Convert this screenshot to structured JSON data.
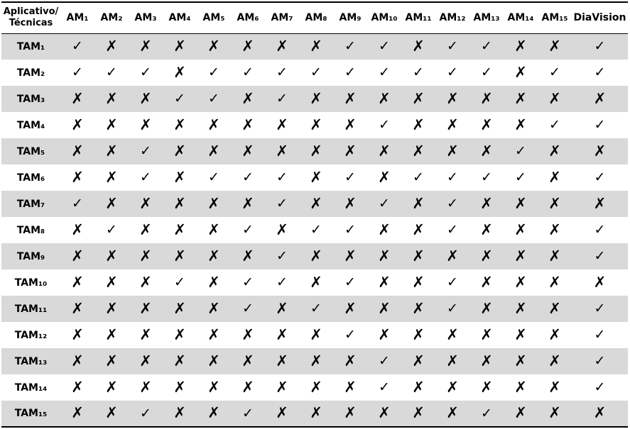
{
  "table": {
    "corner_header": [
      "Aplicativo/",
      "Técnicas"
    ],
    "columns": [
      "AM₁",
      "AM₂",
      "AM₃",
      "AM₄",
      "AM₅",
      "AM₆",
      "AM₇",
      "AM₈",
      "AM₉",
      "AM₁₀",
      "AM₁₁",
      "AM₁₂",
      "AM₁₃",
      "AM₁₄",
      "AM₁₅",
      "DiaVision"
    ],
    "symbols": {
      "yes": "✓",
      "no": "✗"
    },
    "rows": [
      {
        "label": "TAM₁",
        "values": [
          "yes",
          "no",
          "no",
          "no",
          "no",
          "no",
          "no",
          "no",
          "yes",
          "yes",
          "no",
          "yes",
          "yes",
          "no",
          "no",
          "yes"
        ]
      },
      {
        "label": "TAM₂",
        "values": [
          "yes",
          "yes",
          "yes",
          "no",
          "yes",
          "yes",
          "yes",
          "yes",
          "yes",
          "yes",
          "yes",
          "yes",
          "yes",
          "no",
          "yes",
          "yes"
        ]
      },
      {
        "label": "TAM₃",
        "values": [
          "no",
          "no",
          "no",
          "yes",
          "yes",
          "no",
          "yes",
          "no",
          "no",
          "no",
          "no",
          "no",
          "no",
          "no",
          "no",
          "no"
        ]
      },
      {
        "label": "TAM₄",
        "values": [
          "no",
          "no",
          "no",
          "no",
          "no",
          "no",
          "no",
          "no",
          "no",
          "yes",
          "no",
          "no",
          "no",
          "no",
          "yes",
          "yes"
        ]
      },
      {
        "label": "TAM₅",
        "values": [
          "no",
          "no",
          "yes",
          "no",
          "no",
          "no",
          "no",
          "no",
          "no",
          "no",
          "no",
          "no",
          "no",
          "yes",
          "no",
          "no"
        ]
      },
      {
        "label": "TAM₆",
        "values": [
          "no",
          "no",
          "yes",
          "no",
          "yes",
          "yes",
          "yes",
          "no",
          "yes",
          "no",
          "yes",
          "yes",
          "yes",
          "yes",
          "no",
          "yes"
        ]
      },
      {
        "label": "TAM₇",
        "values": [
          "yes",
          "no",
          "no",
          "no",
          "no",
          "no",
          "yes",
          "no",
          "no",
          "yes",
          "no",
          "yes",
          "no",
          "no",
          "no",
          "no"
        ]
      },
      {
        "label": "TAM₈",
        "values": [
          "no",
          "yes",
          "no",
          "no",
          "no",
          "yes",
          "no",
          "yes",
          "yes",
          "no",
          "no",
          "yes",
          "no",
          "no",
          "no",
          "yes"
        ]
      },
      {
        "label": "TAM₉",
        "values": [
          "no",
          "no",
          "no",
          "no",
          "no",
          "no",
          "yes",
          "no",
          "no",
          "no",
          "no",
          "no",
          "no",
          "no",
          "no",
          "yes"
        ]
      },
      {
        "label": "TAM₁₀",
        "values": [
          "no",
          "no",
          "no",
          "yes",
          "no",
          "yes",
          "yes",
          "no",
          "yes",
          "no",
          "no",
          "yes",
          "no",
          "no",
          "no",
          "no"
        ]
      },
      {
        "label": "TAM₁₁",
        "values": [
          "no",
          "no",
          "no",
          "no",
          "no",
          "yes",
          "no",
          "yes",
          "no",
          "no",
          "no",
          "yes",
          "no",
          "no",
          "no",
          "yes"
        ]
      },
      {
        "label": "TAM₁₂",
        "values": [
          "no",
          "no",
          "no",
          "no",
          "no",
          "no",
          "no",
          "no",
          "yes",
          "no",
          "no",
          "no",
          "no",
          "no",
          "no",
          "yes"
        ]
      },
      {
        "label": "TAM₁₃",
        "values": [
          "no",
          "no",
          "no",
          "no",
          "no",
          "no",
          "no",
          "no",
          "no",
          "yes",
          "no",
          "no",
          "no",
          "no",
          "no",
          "yes"
        ]
      },
      {
        "label": "TAM₁₄",
        "values": [
          "no",
          "no",
          "no",
          "no",
          "no",
          "no",
          "no",
          "no",
          "no",
          "yes",
          "no",
          "no",
          "no",
          "no",
          "no",
          "yes"
        ]
      },
      {
        "label": "TAM₁₅",
        "values": [
          "no",
          "no",
          "yes",
          "no",
          "no",
          "yes",
          "no",
          "no",
          "no",
          "no",
          "no",
          "no",
          "yes",
          "no",
          "no",
          "no"
        ]
      }
    ]
  }
}
